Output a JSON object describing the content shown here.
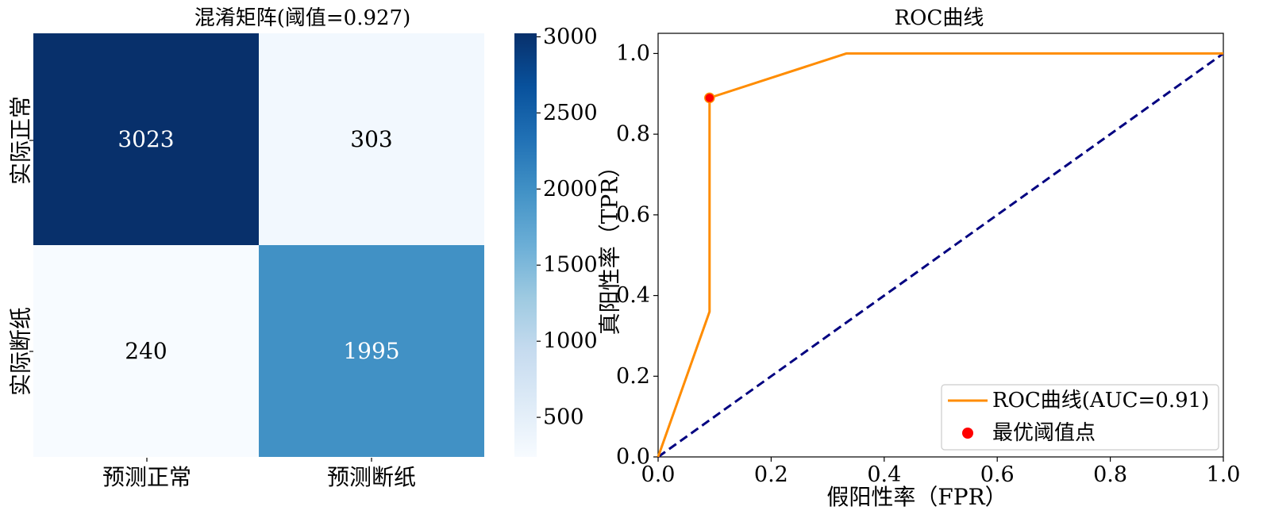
{
  "chart_data": [
    {
      "type": "heatmap",
      "title": "混淆矩阵(阈值=0.927)",
      "row_labels": [
        "实际正常",
        "实际断纸"
      ],
      "col_labels": [
        "预测正常",
        "预测断纸"
      ],
      "values": [
        [
          3023,
          303
        ],
        [
          240,
          1995
        ]
      ],
      "cell_labels": [
        [
          "3023",
          "303"
        ],
        [
          "240",
          "1995"
        ]
      ],
      "colorbar": {
        "range": [
          240,
          3023
        ],
        "ticks": [
          500,
          1000,
          1500,
          2000,
          2500,
          3000
        ],
        "tick_labels": [
          "500",
          "1000",
          "1500",
          "2000",
          "2500",
          "3000"
        ],
        "colormap": [
          "#f7fbff",
          "#deebf7",
          "#c6dbef",
          "#9ecae1",
          "#6baed6",
          "#4292c6",
          "#2171b5",
          "#08519c",
          "#08306b"
        ]
      }
    },
    {
      "type": "line",
      "title": "ROC曲线",
      "xlabel": "假阳性率（FPR）",
      "ylabel": "真阳性率（TPR）",
      "xlim": [
        0.0,
        1.0
      ],
      "ylim": [
        0.0,
        1.05
      ],
      "xticks": [
        0.0,
        0.2,
        0.4,
        0.6,
        0.8,
        1.0
      ],
      "xtick_labels": [
        "0.0",
        "0.2",
        "0.4",
        "0.6",
        "0.8",
        "1.0"
      ],
      "yticks": [
        0.0,
        0.2,
        0.4,
        0.6,
        0.8,
        1.0
      ],
      "ytick_labels": [
        "0.0",
        "0.2",
        "0.4",
        "0.6",
        "0.8",
        "1.0"
      ],
      "series": [
        {
          "name": "ROC曲线(AUC=0.91)",
          "color": "#ff8c00",
          "x": [
            0.0,
            0.091,
            0.091,
            0.333,
            1.0
          ],
          "y": [
            0.0,
            0.36,
            0.89,
            1.0,
            1.0
          ]
        },
        {
          "color": "#000080",
          "style": "dashed",
          "x": [
            0.0,
            1.0
          ],
          "y": [
            0.0,
            1.0
          ]
        }
      ],
      "points": [
        {
          "name": "最优阈值点",
          "color": "#ff0000",
          "x": 0.091,
          "y": 0.89
        }
      ],
      "legend": {
        "placement": "lower-right",
        "entries": [
          "ROC曲线(AUC=0.91)",
          "最优阈值点"
        ]
      }
    }
  ]
}
